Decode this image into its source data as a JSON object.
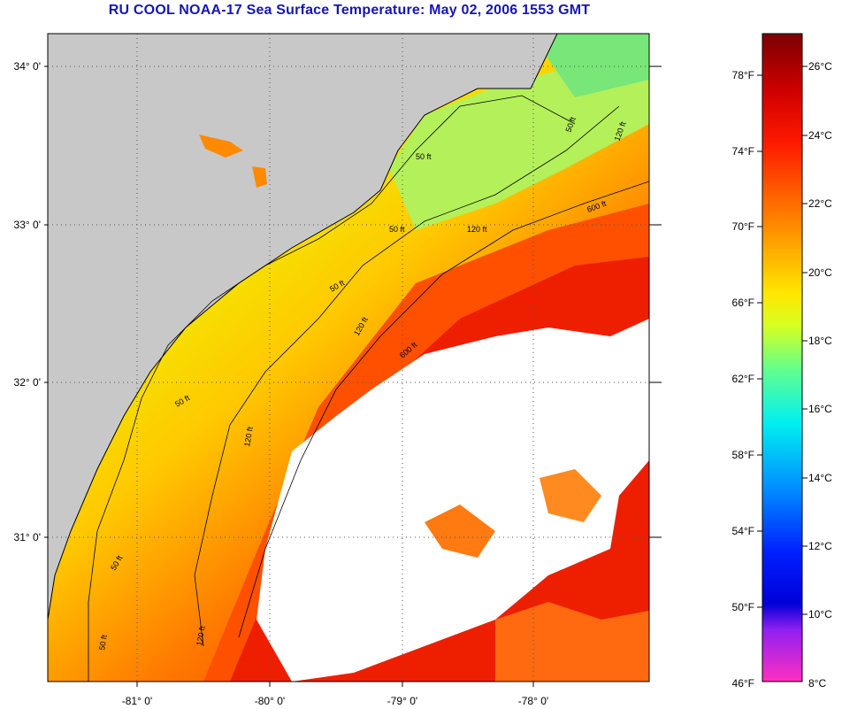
{
  "title": "RU COOL  NOAA-17  Sea Surface Temperature:  May 02, 2006 1553 GMT",
  "axes": {
    "lat_labels": [
      "34° 0'",
      "33° 0'",
      "32° 0'",
      "31° 0'"
    ],
    "lon_labels": [
      "-81° 0'",
      "-80° 0'",
      "-79° 0'",
      "-78° 0'"
    ]
  },
  "contours": {
    "labels": [
      "50 ft",
      "50 ft",
      "50 ft",
      "50 ft",
      "50 ft",
      "50 ft",
      "50 ft",
      "120 ft",
      "120 ft",
      "120 ft",
      "120 ft",
      "120 ft",
      "600 ft",
      "600 ft"
    ]
  },
  "colorbar": {
    "fahrenheit": [
      "78°F",
      "74°F",
      "70°F",
      "66°F",
      "62°F",
      "58°F",
      "54°F",
      "50°F",
      "46°F"
    ],
    "celsius": [
      "26°C",
      "24°C",
      "22°C",
      "20°C",
      "18°C",
      "16°C",
      "14°C",
      "12°C",
      "10°C",
      "8°C"
    ]
  },
  "colors": {
    "land": "#c8c8c8",
    "cloud": "#ffffff",
    "title": "#1616b4"
  }
}
